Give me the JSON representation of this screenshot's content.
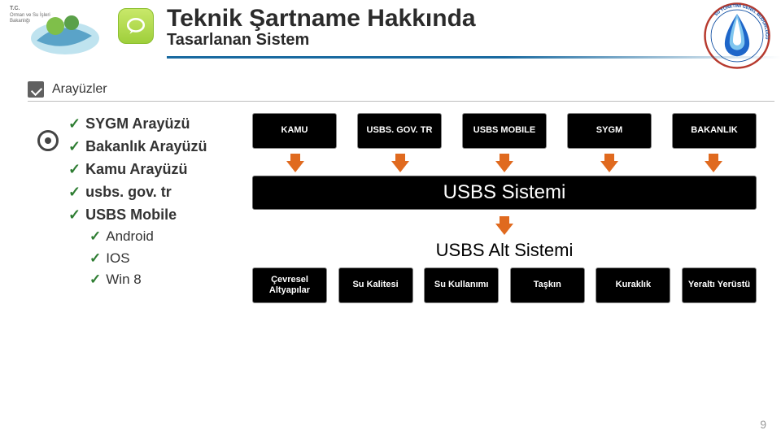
{
  "title": "Teknik Şartname Hakkında",
  "subtitle": "Tasarlanan Sistem",
  "section": "Arayüzler",
  "page_number": "9",
  "interfaces_main": [
    "SYGM Arayüzü",
    "Bakanlık Arayüzü",
    "Kamu Arayüzü",
    "usbs. gov. tr",
    "USBS Mobile"
  ],
  "interfaces_sub": [
    "Android",
    "IOS",
    "Win 8"
  ],
  "diagram": {
    "top_boxes": [
      "KAMU",
      "USBS. GOV. TR",
      "USBS MOBILE",
      "SYGM",
      "BAKANLIK"
    ],
    "arrow_colors": [
      "#e06a1f",
      "#e06a1f",
      "#e06a1f",
      "#e06a1f",
      "#e06a1f"
    ],
    "system_bar": "USBS Sistemi",
    "mid_arrow_color": "#e06a1f",
    "sub_bar": "USBS Alt Sistemi",
    "bottom_boxes": [
      "Çevresel Altyapılar",
      "Su Kalitesi",
      "Su Kullanımı",
      "Taşkın",
      "Kuraklık",
      "Yeraltı Yerüstü"
    ],
    "box_bg": "#000000",
    "box_fg": "#ffffff",
    "box_border": "#8a8a8a"
  },
  "colors": {
    "title": "#2b2b2b",
    "header_line": "#1a6aa0",
    "check": "#2e7d32"
  }
}
